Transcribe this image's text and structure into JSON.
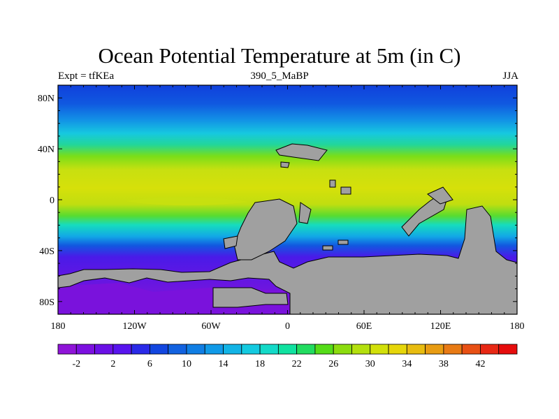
{
  "map": {
    "title": "Ocean Potential Temperature at 5m (in C)",
    "left_label": "Expt = tfKEa",
    "center_label": "390_5_MaBP",
    "right_label": "JJA",
    "projection": "cylindrical-equidistant",
    "lon_range": [
      -180,
      180
    ],
    "lat_range": [
      -90,
      90
    ],
    "land_color": "#a0a0a0",
    "lat_ticks": [
      {
        "value": 80,
        "label": "80N"
      },
      {
        "value": 40,
        "label": "40N"
      },
      {
        "value": 0,
        "label": "0"
      },
      {
        "value": -40,
        "label": "40S"
      },
      {
        "value": -80,
        "label": "80S"
      }
    ],
    "lon_ticks": [
      {
        "value": -180,
        "label": "180"
      },
      {
        "value": -120,
        "label": "120W"
      },
      {
        "value": -60,
        "label": "60W"
      },
      {
        "value": 0,
        "label": "0"
      },
      {
        "value": 60,
        "label": "60E"
      },
      {
        "value": 120,
        "label": "120E"
      },
      {
        "value": 180,
        "label": "180"
      }
    ]
  },
  "colorbar": {
    "colors": [
      "#8f14d8",
      "#7c10e0",
      "#6a10e6",
      "#5814ee",
      "#2a2ae8",
      "#1246e0",
      "#1262e0",
      "#107ee4",
      "#109ae8",
      "#12b4e6",
      "#14cae0",
      "#14dac8",
      "#10e2a0",
      "#22dc60",
      "#55dc18",
      "#8cdc0e",
      "#b4e00e",
      "#d2e00a",
      "#e6d60a",
      "#e8bc10",
      "#e89c12",
      "#e87a14",
      "#e85014",
      "#e82814",
      "#e60c0c"
    ],
    "tick_labels": [
      "-2",
      "2",
      "6",
      "10",
      "14",
      "18",
      "22",
      "26",
      "30",
      "34",
      "38",
      "42"
    ]
  }
}
